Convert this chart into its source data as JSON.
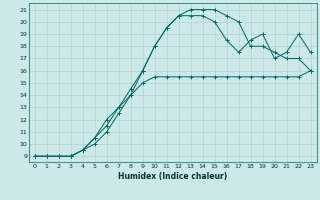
{
  "xlabel": "Humidex (Indice chaleur)",
  "background_color": "#cce8e8",
  "grid_color": "#aacccc",
  "line_color": "#006666",
  "xlim": [
    -0.5,
    23.5
  ],
  "ylim": [
    8.5,
    21.5
  ],
  "xticks": [
    0,
    1,
    2,
    3,
    4,
    5,
    6,
    7,
    8,
    9,
    10,
    11,
    12,
    13,
    14,
    15,
    16,
    17,
    18,
    19,
    20,
    21,
    22,
    23
  ],
  "yticks": [
    9,
    10,
    11,
    12,
    13,
    14,
    15,
    16,
    17,
    18,
    19,
    20,
    21
  ],
  "series": [
    {
      "x": [
        0,
        1,
        2,
        3,
        4,
        5,
        6,
        7,
        8,
        9,
        10,
        11,
        12,
        13,
        14,
        15,
        16,
        17,
        18,
        19,
        20,
        21,
        22,
        23
      ],
      "y": [
        9,
        9,
        9,
        9,
        9.5,
        10.5,
        12,
        13,
        14,
        15,
        15.5,
        15.5,
        15.5,
        15.5,
        15.5,
        15.5,
        15.5,
        15.5,
        15.5,
        15.5,
        15.5,
        15.5,
        15.5,
        16
      ]
    },
    {
      "x": [
        0,
        1,
        2,
        3,
        4,
        5,
        6,
        7,
        8,
        9,
        10,
        11,
        12,
        13,
        14,
        15,
        16,
        17,
        18,
        19,
        20,
        21,
        22,
        23
      ],
      "y": [
        9,
        9,
        9,
        9,
        9.5,
        10.5,
        11.5,
        13,
        14.5,
        16,
        18,
        19.5,
        20.5,
        21,
        21,
        21,
        20.5,
        20,
        18,
        18,
        17.5,
        17,
        17,
        16
      ]
    },
    {
      "x": [
        0,
        1,
        2,
        3,
        4,
        5,
        6,
        7,
        8,
        9,
        10,
        11,
        12,
        13,
        14,
        15,
        16,
        17,
        18,
        19,
        20,
        21,
        22,
        23
      ],
      "y": [
        9,
        9,
        9,
        9,
        9.5,
        10,
        11,
        12.5,
        14,
        16,
        18,
        19.5,
        20.5,
        20.5,
        20.5,
        20,
        18.5,
        17.5,
        18.5,
        19,
        17,
        17.5,
        19,
        17.5
      ]
    }
  ]
}
